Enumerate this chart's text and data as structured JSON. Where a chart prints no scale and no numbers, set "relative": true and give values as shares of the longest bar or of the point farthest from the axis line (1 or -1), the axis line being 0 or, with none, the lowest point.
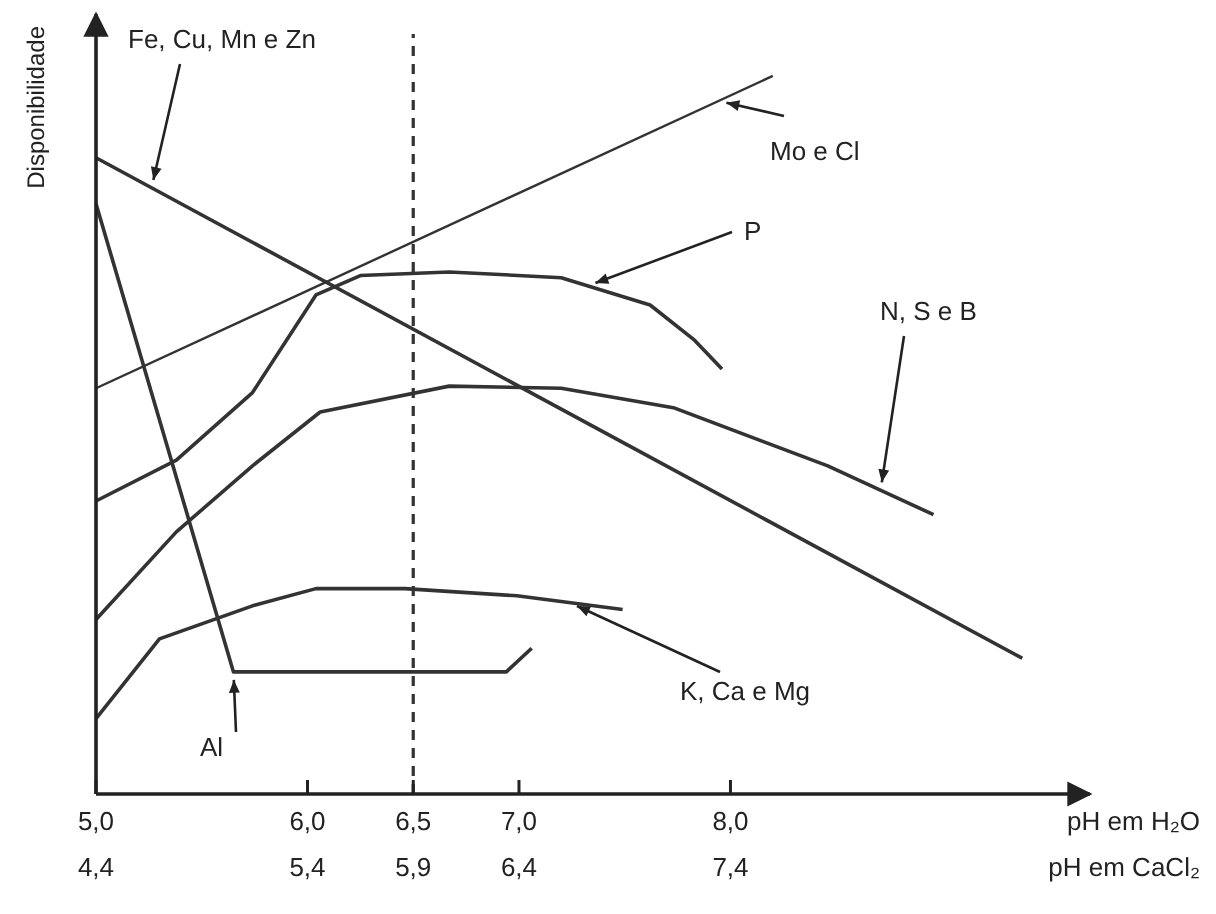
{
  "chart_data": {
    "type": "line",
    "relative": true,
    "ylabel": "Disponibilidade",
    "xlabel": "pH em H₂O",
    "x2label": "pH em CaCl₂",
    "xlim": [
      5,
      9.7
    ],
    "xticks": [
      {
        "value": 5,
        "label": "5,0"
      },
      {
        "value": 6,
        "label": "6,0"
      },
      {
        "value": 6.5,
        "label": "6,5"
      },
      {
        "value": 7,
        "label": "7,0"
      },
      {
        "value": 8,
        "label": "8,0"
      }
    ],
    "x2lim": [
      4.4,
      9.1
    ],
    "x2ticks": [
      {
        "value": 4.4,
        "label": "4,4"
      },
      {
        "value": 5.4,
        "label": "5,4"
      },
      {
        "value": 5.9,
        "label": "5,9"
      },
      {
        "value": 6.4,
        "label": "6,4"
      },
      {
        "value": 7.4,
        "label": "7,4"
      }
    ],
    "ref_lines": [
      {
        "axis": "x",
        "value": 6.5,
        "line_style": "dashed",
        "color": "#333333"
      }
    ],
    "series": [
      {
        "name": "Fe, Cu, Mn e Zn",
        "color": "#333333",
        "x": [
          5,
          9.38
        ],
        "values": [
          0.886,
          0.189
        ]
      },
      {
        "name": "Mo e Cl",
        "color": "#333333",
        "x": [
          5,
          8.2
        ],
        "values": [
          0.565,
          1
        ]
      },
      {
        "name": "P",
        "color": "#333333",
        "x": [
          5,
          5.38,
          5.74,
          6.04,
          6.25,
          6.67,
          7.2,
          7.62,
          7.83,
          7.96
        ],
        "values": [
          0.408,
          0.465,
          0.559,
          0.695,
          0.722,
          0.727,
          0.719,
          0.681,
          0.632,
          0.592
        ]
      },
      {
        "name": "N, S e B",
        "color": "#333333",
        "x": [
          5,
          5.38,
          5.74,
          6.06,
          6.67,
          7.2,
          7.73,
          8.46,
          8.96
        ],
        "values": [
          0.243,
          0.365,
          0.457,
          0.532,
          0.568,
          0.565,
          0.538,
          0.457,
          0.389
        ]
      },
      {
        "name": "K, Ca e Mg",
        "color": "#333333",
        "x": [
          5,
          5.3,
          5.74,
          6.04,
          6.46,
          6.99,
          7.49
        ],
        "values": [
          0.105,
          0.216,
          0.262,
          0.286,
          0.286,
          0.276,
          0.257
        ]
      },
      {
        "name": "Al",
        "color": "#333333",
        "x": [
          5,
          5.65,
          6.94,
          7.06
        ],
        "values": [
          0.822,
          0.17,
          0.17,
          0.203
        ]
      }
    ]
  }
}
